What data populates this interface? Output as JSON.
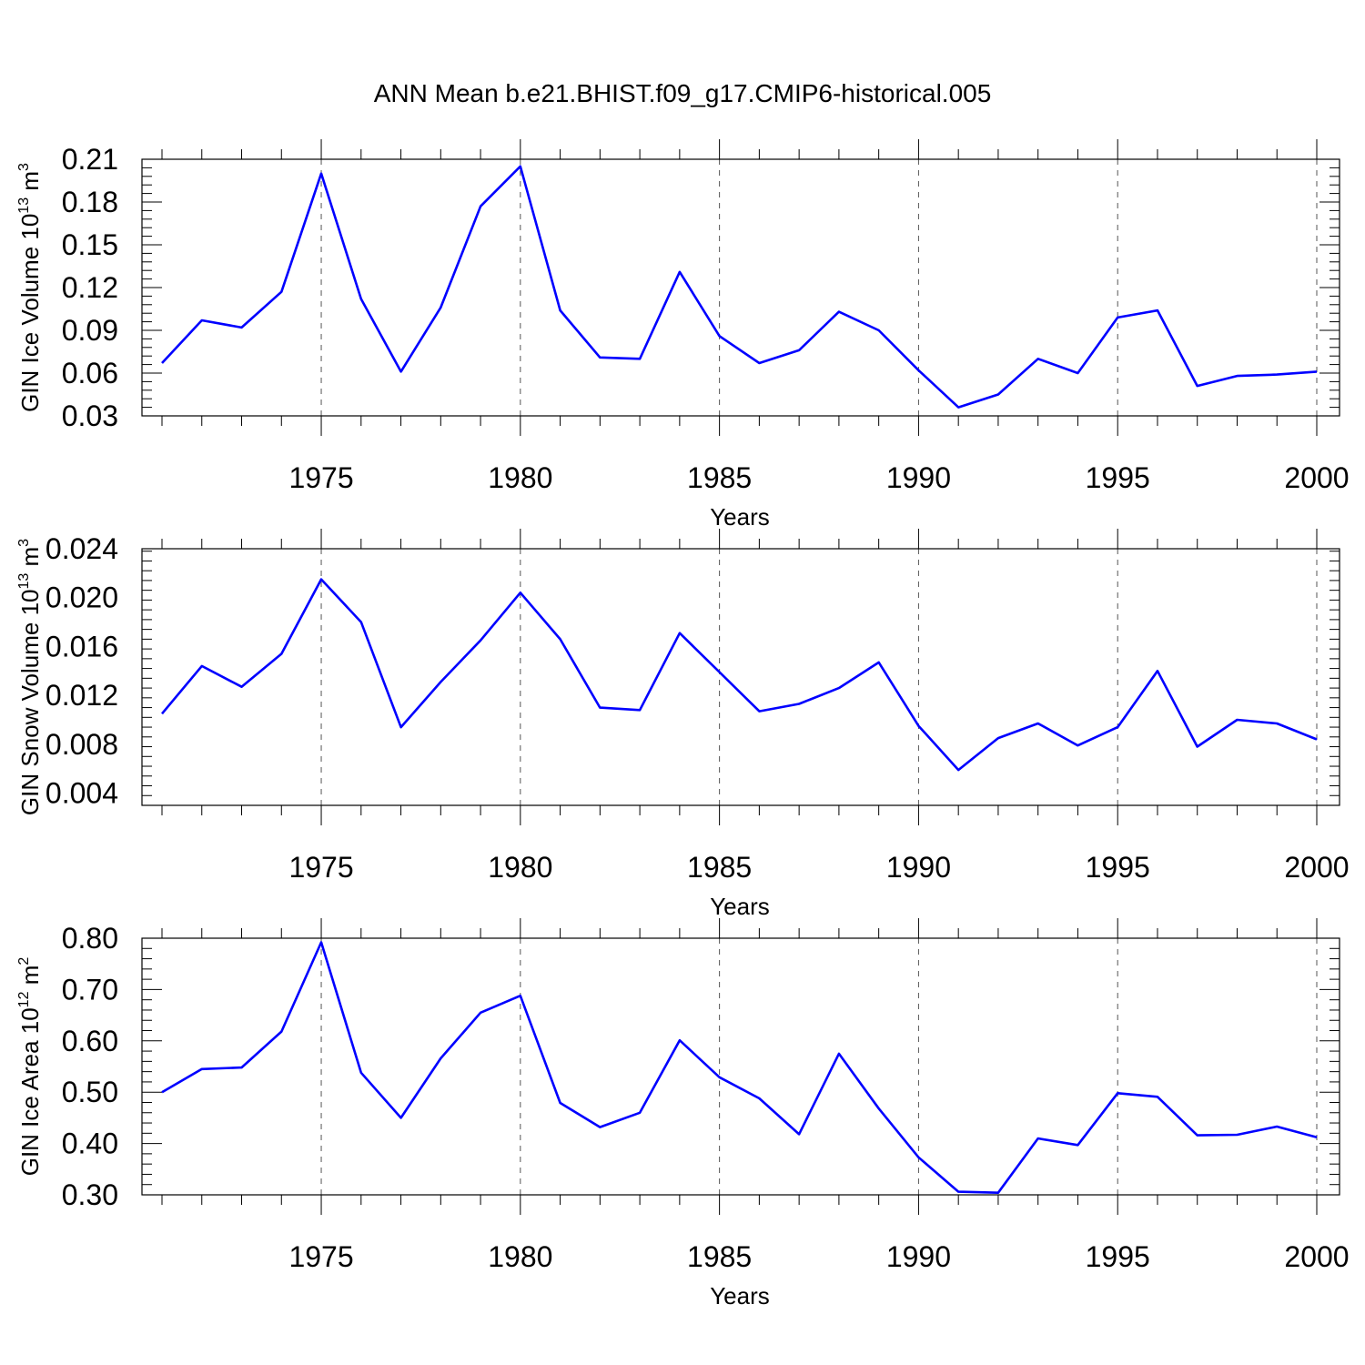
{
  "title": "ANN Mean b.e21.BHIST.f09_g17.CMIP6-historical.005",
  "line_color": "#0000ff",
  "chart_data": [
    {
      "type": "line",
      "ylabel": {
        "prefix": "GIN Ice Volume 10",
        "exp": "13",
        "unit": " m",
        "unit_exp": "3"
      },
      "xlabel": "Years",
      "xlim": [
        1971,
        2000
      ],
      "ylim": [
        0.03,
        0.21
      ],
      "yticks": [
        0.03,
        0.06,
        0.09,
        0.12,
        0.15,
        0.18,
        0.21
      ],
      "ytick_labels": [
        "0.03",
        "0.06",
        "0.09",
        "0.12",
        "0.15",
        "0.18",
        "0.21"
      ],
      "xticks": [
        1975,
        1980,
        1985,
        1990,
        1995,
        2000
      ],
      "xtick_labels": [
        "1975",
        "1980",
        "1985",
        "1990",
        "1995",
        "2000"
      ],
      "grid": "vertical-dashed",
      "x": [
        1971,
        1972,
        1973,
        1974,
        1975,
        1976,
        1977,
        1978,
        1979,
        1980,
        1981,
        1982,
        1983,
        1984,
        1985,
        1986,
        1987,
        1988,
        1989,
        1990,
        1991,
        1992,
        1993,
        1994,
        1995,
        1996,
        1997,
        1998,
        1999,
        2000
      ],
      "values": [
        0.067,
        0.097,
        0.092,
        0.117,
        0.2,
        0.112,
        0.061,
        0.106,
        0.177,
        0.205,
        0.104,
        0.071,
        0.07,
        0.131,
        0.086,
        0.067,
        0.076,
        0.103,
        0.09,
        0.062,
        0.036,
        0.045,
        0.07,
        0.06,
        0.099,
        0.104,
        0.051,
        0.058,
        0.059,
        0.061
      ]
    },
    {
      "type": "line",
      "ylabel": {
        "prefix": "GIN Snow Volume 10",
        "exp": "13",
        "unit": " m",
        "unit_exp": "3"
      },
      "xlabel": "Years",
      "xlim": [
        1971,
        2000
      ],
      "ylim": [
        0.003,
        0.024
      ],
      "yticks": [
        0.004,
        0.008,
        0.012,
        0.016,
        0.02,
        0.024
      ],
      "ytick_labels": [
        "0.004",
        "0.008",
        "0.012",
        "0.016",
        "0.020",
        "0.024"
      ],
      "xticks": [
        1975,
        1980,
        1985,
        1990,
        1995,
        2000
      ],
      "xtick_labels": [
        "1975",
        "1980",
        "1985",
        "1990",
        "1995",
        "2000"
      ],
      "grid": "vertical-dashed",
      "x": [
        1971,
        1972,
        1973,
        1974,
        1975,
        1976,
        1977,
        1978,
        1979,
        1980,
        1981,
        1982,
        1983,
        1984,
        1985,
        1986,
        1987,
        1988,
        1989,
        1990,
        1991,
        1992,
        1993,
        1994,
        1995,
        1996,
        1997,
        1998,
        1999,
        2000
      ],
      "values": [
        0.0105,
        0.0144,
        0.0127,
        0.0154,
        0.0215,
        0.018,
        0.0094,
        0.0131,
        0.0165,
        0.0204,
        0.0166,
        0.011,
        0.0108,
        0.0171,
        0.0139,
        0.0107,
        0.0113,
        0.0126,
        0.0147,
        0.0095,
        0.0059,
        0.0085,
        0.0097,
        0.0079,
        0.0094,
        0.014,
        0.0078,
        0.01,
        0.0097,
        0.0084
      ]
    },
    {
      "type": "line",
      "ylabel": {
        "prefix": "GIN Ice Area 10",
        "exp": "12",
        "unit": " m",
        "unit_exp": "2"
      },
      "xlabel": "Years",
      "xlim": [
        1971,
        2000
      ],
      "ylim": [
        0.3,
        0.8
      ],
      "yticks": [
        0.3,
        0.4,
        0.5,
        0.6,
        0.7,
        0.8
      ],
      "ytick_labels": [
        "0.30",
        "0.40",
        "0.50",
        "0.60",
        "0.70",
        "0.80"
      ],
      "xticks": [
        1975,
        1980,
        1985,
        1990,
        1995,
        2000
      ],
      "xtick_labels": [
        "1975",
        "1980",
        "1985",
        "1990",
        "1995",
        "2000"
      ],
      "grid": "vertical-dashed",
      "x": [
        1971,
        1972,
        1973,
        1974,
        1975,
        1976,
        1977,
        1978,
        1979,
        1980,
        1981,
        1982,
        1983,
        1984,
        1985,
        1986,
        1987,
        1988,
        1989,
        1990,
        1991,
        1992,
        1993,
        1994,
        1995,
        1996,
        1997,
        1998,
        1999,
        2000
      ],
      "values": [
        0.5,
        0.545,
        0.548,
        0.618,
        0.792,
        0.538,
        0.45,
        0.566,
        0.655,
        0.688,
        0.479,
        0.432,
        0.46,
        0.601,
        0.529,
        0.488,
        0.418,
        0.575,
        0.468,
        0.373,
        0.306,
        0.304,
        0.41,
        0.397,
        0.498,
        0.491,
        0.416,
        0.417,
        0.433,
        0.412
      ]
    }
  ]
}
